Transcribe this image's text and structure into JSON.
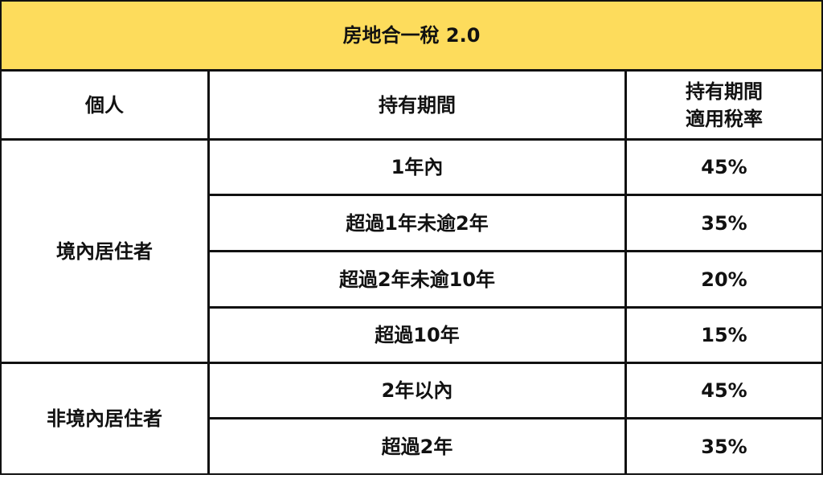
{
  "title": "房地合一稅 2.0",
  "accent_color": "#fddc5c",
  "headers": [
    "個人",
    "持有期間",
    "持有期間\n適用稅率"
  ],
  "header_rate_lines": [
    "持有期間",
    "適用稅率"
  ],
  "groups": [
    {
      "label": "境內居住者",
      "rows": [
        {
          "period": "1年內",
          "rate": "45%"
        },
        {
          "period": "超過1年未逾2年",
          "rate": "35%"
        },
        {
          "period": "超過2年未逾10年",
          "rate": "20%"
        },
        {
          "period": "超過10年",
          "rate": "15%"
        }
      ]
    },
    {
      "label": "非境內居住者",
      "rows": [
        {
          "period": "2年以內",
          "rate": "45%"
        },
        {
          "period": "超過2年",
          "rate": "35%"
        }
      ]
    }
  ]
}
